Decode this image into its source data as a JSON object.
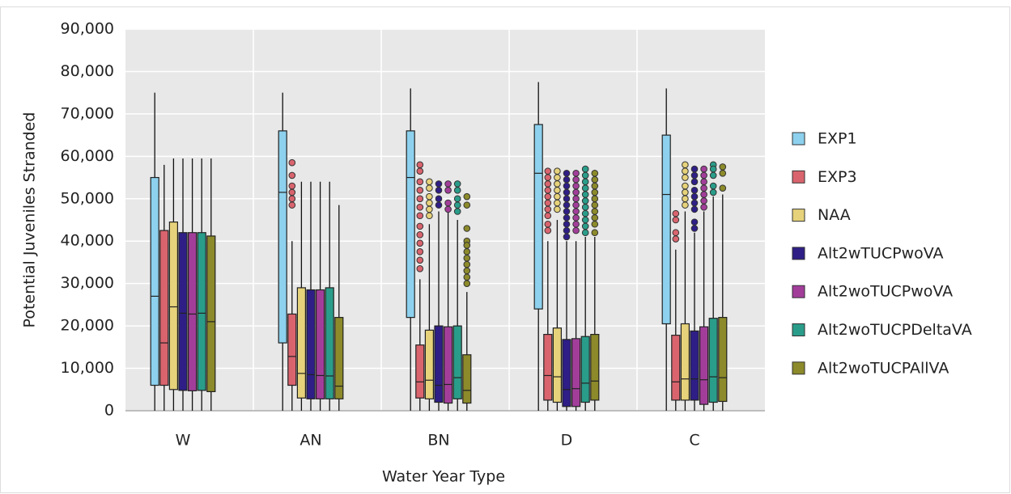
{
  "chart_data": {
    "type": "box",
    "x_label": "Water Year Type",
    "y_label": "Potential Juveniles Stranded",
    "categories": [
      "W",
      "AN",
      "BN",
      "D",
      "C"
    ],
    "ylim": [
      0,
      90000
    ],
    "yticks": [
      0,
      {
        "value": 10000,
        "label": "10,000"
      },
      {
        "value": 20000,
        "label": "20,000"
      },
      {
        "value": 30000,
        "label": "30,000"
      },
      {
        "value": 40000,
        "label": "40,000"
      },
      {
        "value": 50000,
        "label": "50,000"
      },
      {
        "value": 60000,
        "label": "60,000"
      },
      {
        "value": 70000,
        "label": "70,000"
      },
      {
        "value": 80000,
        "label": "80,000"
      },
      {
        "value": 90000,
        "label": "90,000"
      }
    ],
    "grid": true,
    "legend": "right",
    "series": [
      {
        "name": "EXP1",
        "color": "#8dd1ee",
        "low": [
          0,
          0,
          0,
          0,
          0
        ],
        "q1": [
          6000,
          16000,
          22000,
          24000,
          20500
        ],
        "median": [
          27000,
          51500,
          55000,
          56000,
          51000
        ],
        "q3": [
          55000,
          66000,
          66000,
          67500,
          65000
        ],
        "high": [
          75000,
          75000,
          76000,
          77500,
          76000
        ],
        "outliers": [
          [],
          [],
          [],
          [],
          []
        ]
      },
      {
        "name": "EXP3",
        "color": "#d9646e",
        "low": [
          0,
          0,
          0,
          0,
          0
        ],
        "q1": [
          6000,
          6000,
          3000,
          2500,
          2500
        ],
        "median": [
          16000,
          12800,
          6800,
          8300,
          6800
        ],
        "q3": [
          42500,
          22800,
          15500,
          18000,
          17800
        ],
        "high": [
          58000,
          40000,
          31000,
          40000,
          38000
        ],
        "outliers": [
          [],
          [
            58500,
            55500,
            53000,
            51500,
            50000,
            48500
          ],
          [
            58000,
            56500,
            54000,
            52000,
            50000,
            48000,
            46000,
            43500,
            41500,
            39500,
            37500,
            35500,
            33500
          ],
          [
            56500,
            55000,
            53500,
            52000,
            50500,
            49000,
            47500,
            46000,
            44000,
            42500
          ],
          [
            46500,
            45000,
            42000,
            40500
          ]
        ]
      },
      {
        "name": "NAA",
        "color": "#e6d27a",
        "low": [
          0,
          0,
          0,
          0,
          0
        ],
        "q1": [
          5000,
          3000,
          2800,
          2000,
          2500
        ],
        "median": [
          24500,
          8800,
          7200,
          8000,
          7500
        ],
        "q3": [
          44500,
          29000,
          19000,
          19500,
          20500
        ],
        "high": [
          59500,
          54000,
          44000,
          45000,
          47000
        ],
        "outliers": [
          [],
          [],
          [
            54000,
            52500,
            50500,
            49000,
            47500,
            46000
          ],
          [
            56500,
            55000,
            53500,
            52000,
            50500,
            49000,
            47500
          ],
          [
            58000,
            56500,
            55000,
            53000,
            51500,
            50000,
            48500
          ]
        ]
      },
      {
        "name": "Alt2wTUCPwoVA",
        "color": "#2e1e86",
        "low": [
          0,
          0,
          0,
          0,
          0
        ],
        "q1": [
          4800,
          2800,
          2000,
          1000,
          2500
        ],
        "median": [
          23000,
          8500,
          6000,
          5000,
          7500
        ],
        "q3": [
          42000,
          28500,
          20000,
          16800,
          18800
        ],
        "high": [
          59500,
          54000,
          47000,
          40000,
          42000
        ],
        "outliers": [
          [],
          [],
          [
            53500,
            52000,
            50000,
            48500
          ],
          [
            56000,
            54500,
            53000,
            51500,
            50000,
            48500,
            47000,
            45500,
            44000,
            42500,
            41000
          ],
          [
            57000,
            55500,
            54000,
            52000,
            50500,
            49000,
            47500,
            44500,
            43000
          ]
        ]
      },
      {
        "name": "Alt2woTUCPwoVA",
        "color": "#a23e9a",
        "low": [
          0,
          0,
          0,
          0,
          0
        ],
        "q1": [
          4700,
          2800,
          1800,
          1000,
          1500
        ],
        "median": [
          22800,
          8300,
          6200,
          5200,
          7300
        ],
        "q3": [
          42000,
          28500,
          19800,
          17000,
          19800
        ],
        "high": [
          59500,
          54000,
          47000,
          40000,
          47000
        ],
        "outliers": [
          [],
          [],
          [
            53500,
            52000,
            49000,
            47500
          ],
          [
            56000,
            54500,
            53000,
            51500,
            50000,
            48500,
            47000,
            45500,
            44000,
            42500
          ],
          [
            57000,
            55500,
            54000,
            52500,
            51000,
            49500,
            48000
          ]
        ]
      },
      {
        "name": "Alt2woTUCPDeltaVA",
        "color": "#2a9d8a",
        "low": [
          0,
          0,
          0,
          0,
          0
        ],
        "q1": [
          4800,
          2800,
          2800,
          2000,
          2000
        ],
        "median": [
          23000,
          8200,
          7800,
          6500,
          8000
        ],
        "q3": [
          42000,
          29000,
          20000,
          17500,
          21800
        ],
        "high": [
          59500,
          54000,
          45000,
          41000,
          50500
        ],
        "outliers": [
          [],
          [],
          [
            53500,
            52000,
            50000,
            48500,
            47000
          ],
          [
            57000,
            55500,
            54000,
            52500,
            51000,
            49500,
            48000,
            46500,
            45000,
            43500,
            42000
          ],
          [
            58000,
            57000,
            55500,
            53000,
            51500
          ]
        ]
      },
      {
        "name": "Alt2woTUCPAllVA",
        "color": "#8c8a2a",
        "low": [
          0,
          0,
          0,
          0,
          0
        ],
        "q1": [
          4500,
          2800,
          1800,
          2500,
          2200
        ],
        "median": [
          21000,
          5800,
          4800,
          7000,
          7800
        ],
        "q3": [
          41200,
          22000,
          13200,
          18000,
          22000
        ],
        "high": [
          59500,
          48500,
          28000,
          41000,
          51000
        ],
        "outliers": [
          [],
          [],
          [
            50500,
            48500,
            43000,
            40000,
            39000,
            37500,
            36000,
            34500,
            33000,
            31500,
            30000
          ],
          [
            56000,
            54500,
            53000,
            51500,
            50000,
            48500,
            47000,
            45500,
            44000,
            42000
          ],
          [
            57500,
            56000,
            52500
          ]
        ]
      }
    ]
  }
}
